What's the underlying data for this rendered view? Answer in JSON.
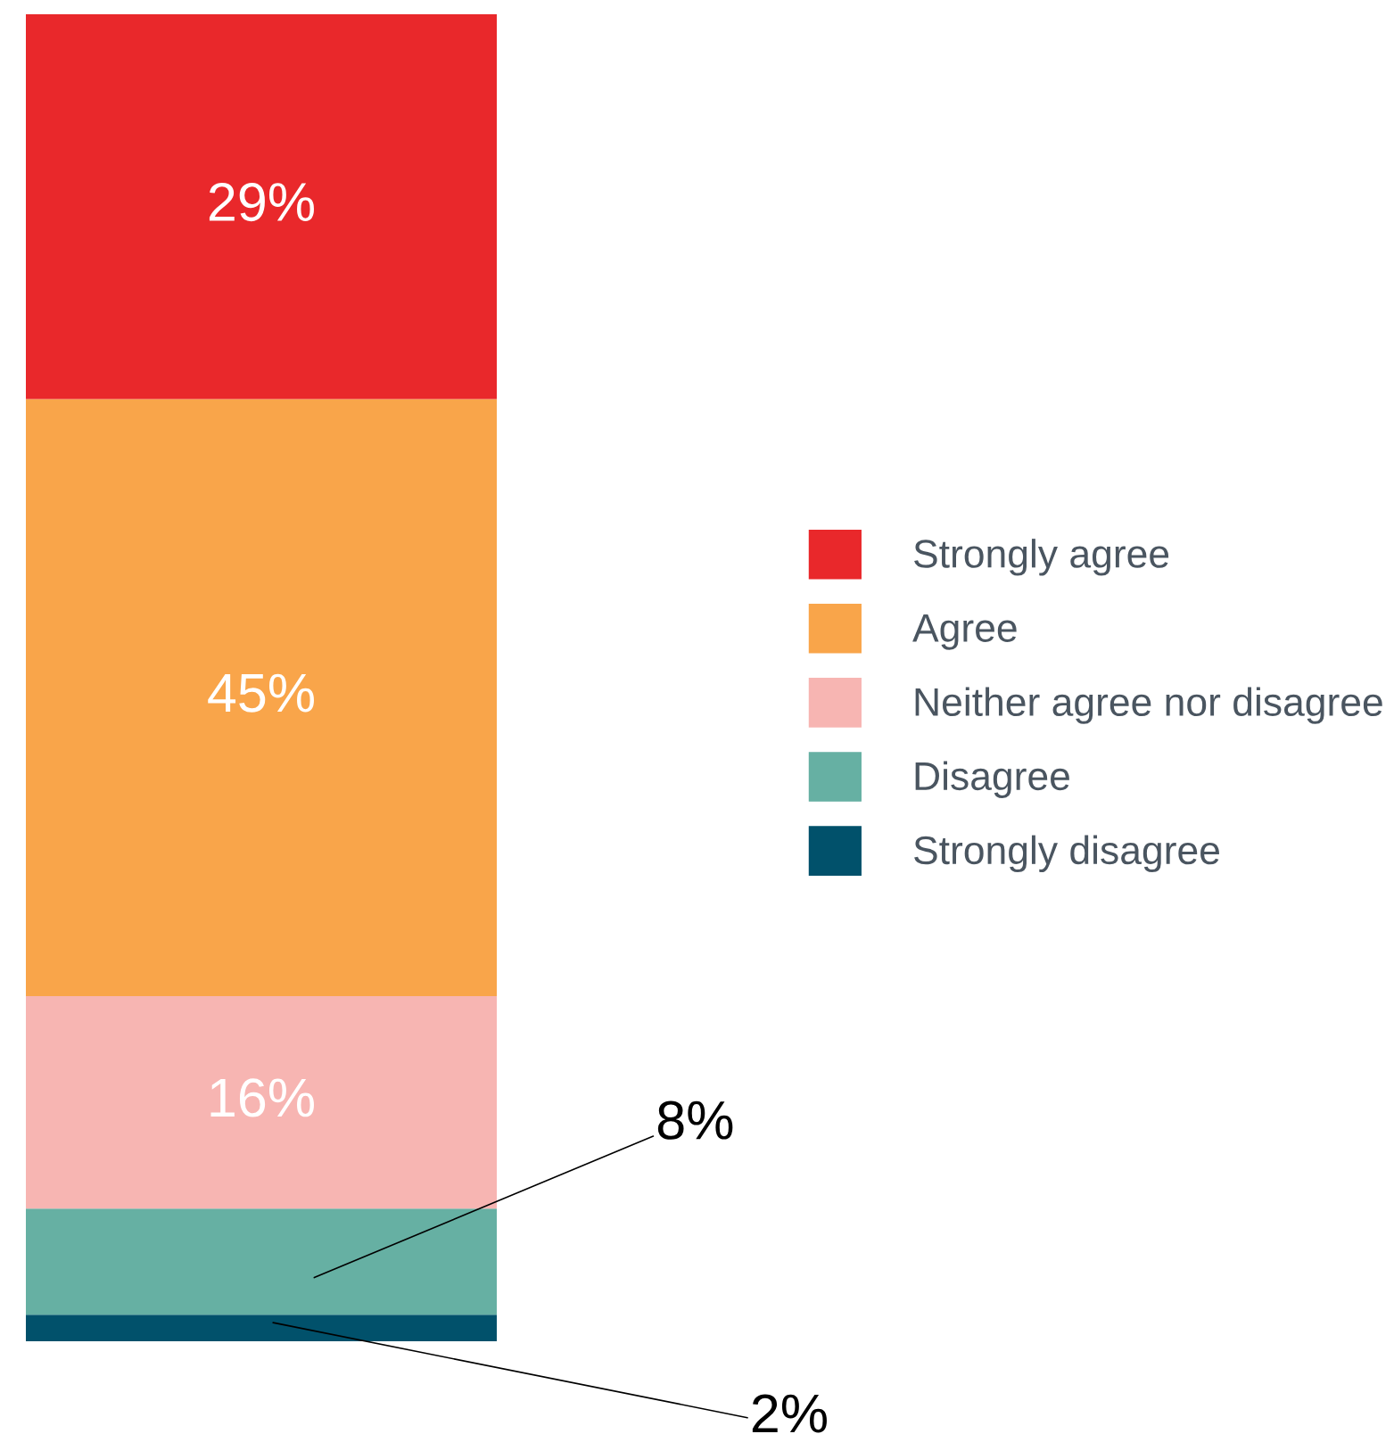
{
  "chart_data": {
    "type": "bar",
    "stacked": true,
    "categories": [
      null
    ],
    "data_labels": true,
    "legend": "right",
    "ylim": [
      0,
      100
    ],
    "series": [
      {
        "name": "Strongly disagree",
        "color": "#01516b",
        "values": [
          2
        ],
        "value_labels": [
          "2%"
        ]
      },
      {
        "name": "Disagree",
        "color": "#66b0a3",
        "values": [
          8
        ],
        "value_labels": [
          "8%"
        ]
      },
      {
        "name": "Neither agree nor disagree",
        "color": "#f7b5b2",
        "values": [
          16
        ],
        "value_labels": [
          "16%"
        ]
      },
      {
        "name": "Agree",
        "color": "#f9a54a",
        "values": [
          45
        ],
        "value_labels": [
          "45%"
        ]
      },
      {
        "name": "Strongly agree",
        "color": "#e9282b",
        "values": [
          29
        ],
        "value_labels": [
          "29%"
        ]
      }
    ]
  }
}
